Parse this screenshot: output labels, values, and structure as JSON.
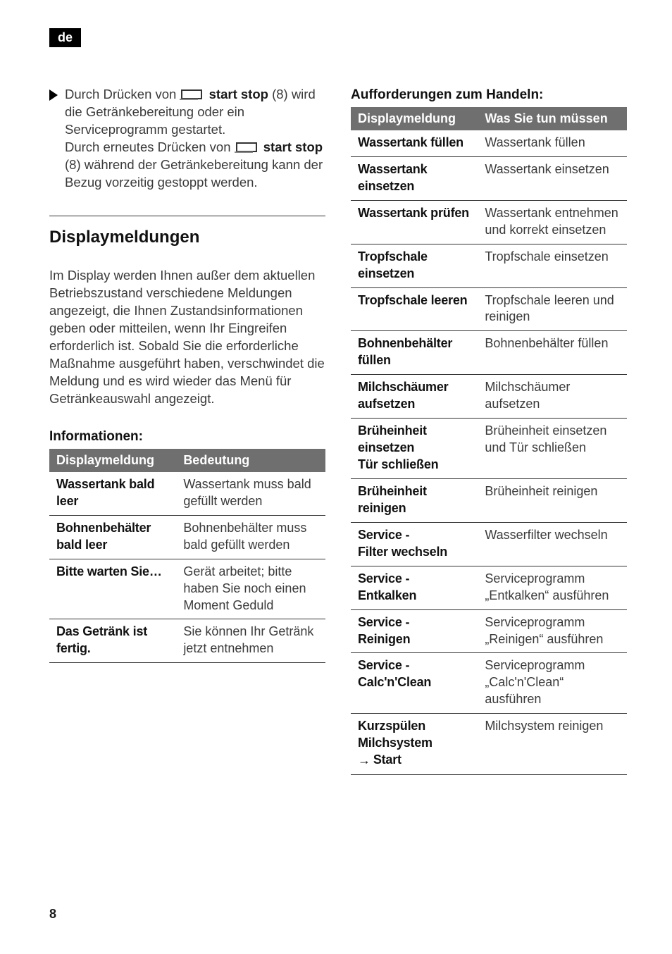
{
  "lang_badge": "de",
  "page_number": "8",
  "bullet": {
    "part1": "Durch Drücken von ",
    "bold1": "start stop",
    "part2": " (8) wird die Getränkebereitung oder ein Serviceprogramm gestartet.",
    "part3": "Durch erneutes Drücken von ",
    "bold2": "start stop",
    "part4": " (8) während der Getränkeberei­tung kann der Bezug vorzeitig gestoppt werden."
  },
  "section_heading": "Displaymeldungen",
  "intro_para": "Im Display werden Ihnen außer dem aktuellen Betriebszustand verschiedene Meldungen angezeigt, die Ihnen Zustands­informationen geben oder mitteilen, wenn Ihr Eingreifen erforderlich ist. Sobald Sie die erforderliche Maßnahme ausgeführt haben, verschwindet die Meldung und es wird wieder das Menü für Getränkeauswahl angezeigt.",
  "info_heading": "Informationen:",
  "info_table": {
    "headers": [
      "Displaymeldung",
      "Bedeutung"
    ],
    "rows": [
      [
        "Wassertank bald leer",
        "Wassertank muss bald gefüllt werden"
      ],
      [
        "Bohnenbehälter bald leer",
        "Bohnenbehälter muss bald gefüllt werden"
      ],
      [
        "Bitte warten Sie…",
        "Gerät arbeitet; bitte haben Sie noch einen Moment Geduld"
      ],
      [
        "Das Getränk ist fertig.",
        "Sie können Ihr Ge­tränk jetzt entnehmen"
      ]
    ]
  },
  "action_heading": "Aufforderungen zum Handeln:",
  "action_table": {
    "headers": [
      "Displaymeldung",
      "Was Sie tun müssen"
    ],
    "rows": [
      [
        "Wassertank füllen",
        "Wassertank füllen"
      ],
      [
        "Wassertank einsetzen",
        "Wassertank einsetzen"
      ],
      [
        "Wassertank prüfen",
        "Wassertank ent­nehmen und korrekt einsetzen"
      ],
      [
        "Tropfschale einsetzen",
        "Tropfschale einsetzen"
      ],
      [
        "Tropfschale leeren",
        "Tropfschale leeren und reinigen"
      ],
      [
        "Bohnenbehälter füllen",
        "Bohnenbehälter füllen"
      ],
      [
        "Milchschäumer aufsetzen",
        "Milchschäumer aufsetzen"
      ],
      [
        "Brüheinheit einsetzen\nTür schließen",
        "Brüheinheit einsetzen und Tür schließen"
      ],
      [
        "Brüheinheit reinigen",
        "Brüheinheit reinigen"
      ],
      [
        "Service -\nFilter wechseln",
        "Wasserfilter wechseln"
      ],
      [
        "Service -\nEntkalken",
        "Serviceprogramm „Entkalken“ ausführen"
      ],
      [
        "Service -\nReinigen",
        "Serviceprogramm „Reinigen“ ausführen"
      ],
      [
        "Service -\nCalc'n'Clean",
        "Serviceprogramm „Calc'n'Clean“ ausführen"
      ],
      [
        "Kurzspülen Milchsystem\n→ Start",
        "Milchsystem reinigen"
      ]
    ]
  }
}
